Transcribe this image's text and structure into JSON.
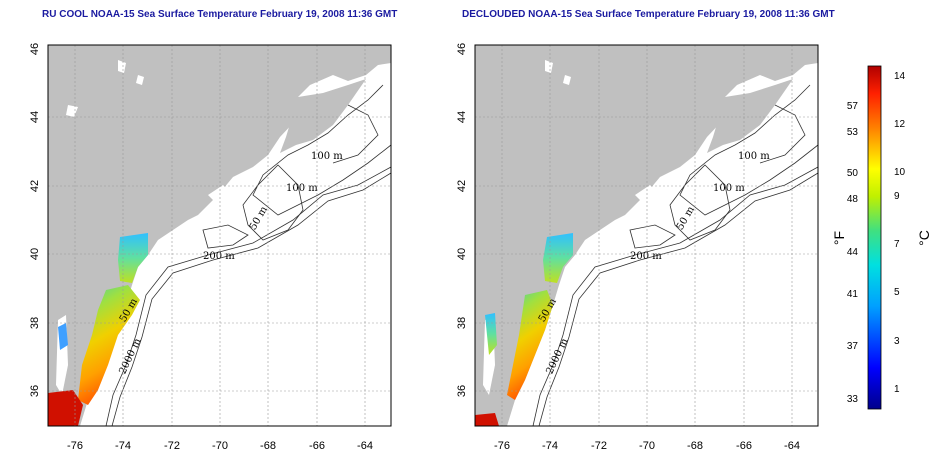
{
  "panels": [
    {
      "title": "RU COOL NOAA-15 Sea Surface Temperature February 19, 2008 11:36 GMT",
      "contour_labels": [
        "100 m",
        "100 m",
        "50 m",
        "200 m",
        "50 m",
        "2000 m"
      ]
    },
    {
      "title": "DECLOUDED NOAA-15 Sea Surface Temperature February 19, 2008 11:36 GMT",
      "contour_labels": [
        "100 m",
        "100 m",
        "50 m",
        "200 m",
        "50 m",
        "2000 m"
      ]
    }
  ],
  "axes": {
    "x_ticks": [
      "-76",
      "-74",
      "-72",
      "-70",
      "-68",
      "-66",
      "-64"
    ],
    "y_ticks": [
      "36",
      "38",
      "40",
      "42",
      "44",
      "46"
    ]
  },
  "colorbar": {
    "fahrenheit_ticks": [
      "57",
      "53",
      "50",
      "48",
      "44",
      "41",
      "37",
      "33"
    ],
    "celsius_ticks": [
      "14",
      "12",
      "10",
      "9",
      "7",
      "5",
      "3",
      "1"
    ],
    "fahrenheit_unit": "°F",
    "celsius_unit": "°C",
    "range_celsius": [
      0,
      14.5
    ]
  },
  "colors": {
    "land": "#c0c0c0",
    "ocean": "#ffffff",
    "title": "#1a1aa0"
  }
}
